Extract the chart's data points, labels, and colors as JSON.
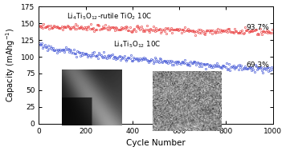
{
  "title": "",
  "xlabel": "Cycle Number",
  "ylabel": "Capacity (mAhg$^{-1}$)",
  "xlim": [
    0,
    1000
  ],
  "ylim": [
    0,
    175
  ],
  "yticks": [
    0,
    25,
    50,
    75,
    100,
    125,
    150,
    175
  ],
  "xticks": [
    0,
    200,
    400,
    600,
    800,
    1000
  ],
  "red_label": "$\\mathrm{Li_4Ti_5O_{12}}$-rutile TiO$_2$ 10C",
  "blue_label": "$\\mathrm{Li_4Ti_5O_{12}}$ 10C",
  "red_start": 146,
  "red_end": 136.8,
  "blue_start": 117,
  "blue_end": 81.0,
  "red_pct": "93.7%",
  "blue_pct": "69.3%",
  "red_color": "#e8393a",
  "blue_color": "#3b50d4",
  "n_cycles": 1000,
  "noise_amplitude": 2.5,
  "background_color": "#ffffff"
}
